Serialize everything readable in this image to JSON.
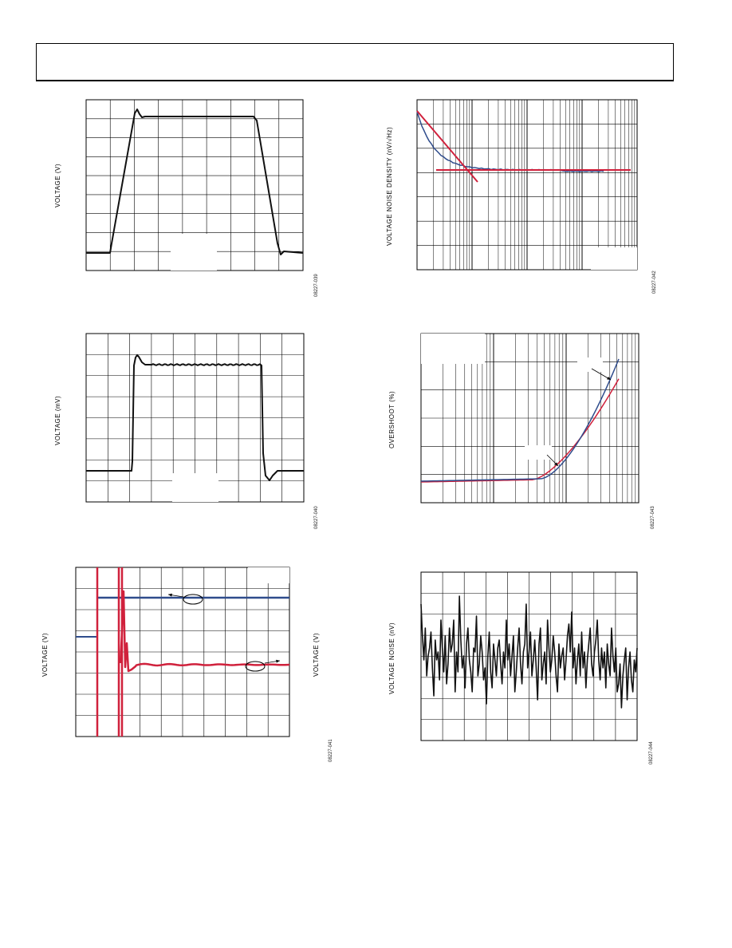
{
  "charts": [
    {
      "id": "c1",
      "ylabel": "VOLTAGE (V)",
      "figid": "08227-039"
    },
    {
      "id": "c2",
      "ylabel": "VOLTAGE NOISE DENSITY (nV/√Hz)",
      "figid": "08227-042"
    },
    {
      "id": "c3",
      "ylabel": "VOLTAGE (mV)",
      "figid": "08227-040"
    },
    {
      "id": "c4",
      "ylabel": "OVERSHOOT (%)",
      "figid": "08227-043"
    },
    {
      "id": "c5",
      "ylabel": "VOLTAGE (V)",
      "ylabel_right": "VOLTAGE (V)",
      "figid": "08227-041"
    },
    {
      "id": "c6",
      "ylabel": "VOLTAGE NOISE (nV)",
      "figid": "08227-044"
    }
  ],
  "chart_data": [
    {
      "type": "line",
      "title": "",
      "xlabel": "",
      "ylabel": "VOLTAGE (V)",
      "grid": true,
      "series": [
        {
          "color": "#111111",
          "values": [
            0.05,
            0.05,
            0.06,
            0.93,
            0.88,
            0.88,
            0.88,
            0.88,
            0.88,
            0.88,
            0.88,
            0.88,
            0.88,
            0.85,
            0.05,
            0.05
          ]
        }
      ]
    },
    {
      "type": "line",
      "title": "",
      "xlabel": "",
      "ylabel": "VOLTAGE NOISE DENSITY (nV/√Hz)",
      "grid": true,
      "x_scale": "log",
      "series": [
        {
          "color": "#2f4c8c",
          "values": [
            0.95,
            0.75,
            0.6,
            0.58,
            0.57,
            0.57,
            0.57,
            0.56
          ]
        },
        {
          "color": "#d0213c",
          "values": [
            0.95,
            0.45
          ]
        },
        {
          "color": "#d0213c",
          "values": [
            0.57,
            0.57
          ]
        }
      ]
    },
    {
      "type": "line",
      "title": "",
      "xlabel": "",
      "ylabel": "VOLTAGE (mV)",
      "grid": true,
      "series": [
        {
          "color": "#111111",
          "values": [
            0.18,
            0.18,
            0.88,
            0.82,
            0.82,
            0.82,
            0.82,
            0.82,
            0.82,
            0.13,
            0.18,
            0.18
          ]
        }
      ]
    },
    {
      "type": "line",
      "title": "",
      "xlabel": "",
      "ylabel": "OVERSHOOT (%)",
      "grid": true,
      "x_scale": "log",
      "series": [
        {
          "color": "#2f4c8c",
          "values": [
            0.12,
            0.12,
            0.13,
            0.14,
            0.2,
            0.48,
            0.85
          ]
        },
        {
          "color": "#d0213c",
          "values": [
            0.11,
            0.12,
            0.13,
            0.16,
            0.26,
            0.5,
            0.77
          ]
        }
      ]
    },
    {
      "type": "line",
      "title": "",
      "xlabel": "",
      "ylabel": "VOLTAGE (V)",
      "grid": true,
      "series": [
        {
          "color": "#2f4c8c",
          "values": [
            0.82,
            0.82
          ]
        },
        {
          "color": "#d0213c",
          "values": [
            0.35,
            0.35
          ]
        }
      ]
    },
    {
      "type": "line",
      "title": "",
      "xlabel": "",
      "ylabel": "VOLTAGE NOISE (nV)",
      "grid": true,
      "series": [
        {
          "color": "#111111",
          "values": [
            0.6,
            0.45,
            0.4,
            0.55,
            0.35,
            0.5,
            0.62,
            0.4,
            0.7,
            0.5,
            0.3,
            0.55,
            0.45,
            0.65,
            0.5,
            0.38,
            0.6,
            0.52,
            0.72,
            0.45,
            0.3
          ]
        }
      ]
    }
  ]
}
